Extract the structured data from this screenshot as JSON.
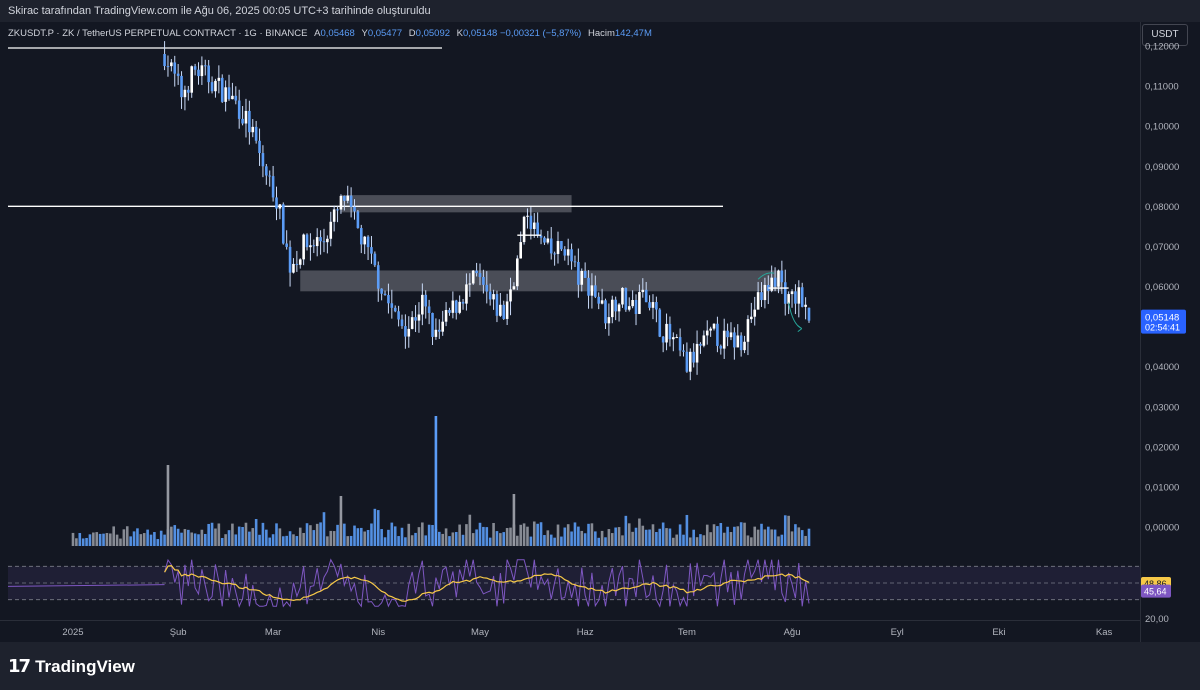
{
  "header": {
    "credit": "Skirac tarafından TradingView.com ile Ağu 06, 2025 00:05 UTC+3 tarihinde oluşturuldu"
  },
  "legend": {
    "symbol": "ZKUSDT.P · ZK / TetherUS PERPETUAL CONTRACT · 1G · BINANCE",
    "open_label": "A",
    "open": "0,05468",
    "high_label": "Y",
    "high": "0,05477",
    "low_label": "D",
    "low": "0,05092",
    "close_label": "K",
    "close": "0,05148",
    "change": "−0,00321 (−5,87%)",
    "volume_label": "Hacim",
    "volume": "142,47M"
  },
  "currency_button": "USDT",
  "price_tag": {
    "value": "0,05148",
    "countdown": "02:54:41",
    "color": "#2962ff"
  },
  "rsi_tags": {
    "ma": "48,86",
    "rsi": "45,64",
    "partial_label": "40,00"
  },
  "brand": {
    "name": "TradingView"
  },
  "colors": {
    "background": "#131722",
    "candle": "#5b9cf6",
    "candle_wick": "#c9daf8",
    "volume_up": "#5b9cf6",
    "volume_down": "#9598a1",
    "rsi_line": "#7e57c2",
    "rsi_ma": "#f7c948",
    "zone": "#9598a1",
    "hline": "#ffffff",
    "arrow": "#26a69a"
  },
  "chart_data": {
    "type": "candlestick",
    "y_axis_labels": [
      "0,12000",
      "0,11000",
      "0,10000",
      "0,09000",
      "0,08000",
      "0,07000",
      "0,06000",
      "0,05000",
      "0,04000",
      "0,03000",
      "0,02000",
      "0,01000",
      "0,00000"
    ],
    "ylim": [
      0,
      0.12
    ],
    "x_axis_labels": [
      "2025",
      "Şub",
      "Mar",
      "Nis",
      "May",
      "Haz",
      "Tem",
      "Ağu",
      "Eyl",
      "Eki",
      "Kas"
    ],
    "rsi_axis_labels": [
      "20,00"
    ],
    "horizontal_lines": [
      0.1195,
      0.08
    ],
    "zones": [
      {
        "from_date": "2025-03-21",
        "to_date": "2025-05-28",
        "low": 0.0785,
        "high": 0.0828
      },
      {
        "from_date": "2025-03-09",
        "to_date": "2025-07-29",
        "low": 0.0588,
        "high": 0.064
      }
    ],
    "price_path": [
      {
        "date": "2025-01-01",
        "close": 0.0
      },
      {
        "date": "2025-01-28",
        "close": 0.118
      },
      {
        "date": "2025-02-02",
        "close": 0.108
      },
      {
        "date": "2025-02-06",
        "close": 0.114
      },
      {
        "date": "2025-02-10",
        "close": 0.112
      },
      {
        "date": "2025-02-14",
        "close": 0.109
      },
      {
        "date": "2025-02-18",
        "close": 0.106
      },
      {
        "date": "2025-02-22",
        "close": 0.1
      },
      {
        "date": "2025-02-26",
        "close": 0.09
      },
      {
        "date": "2025-03-02",
        "close": 0.082
      },
      {
        "date": "2025-03-06",
        "close": 0.065
      },
      {
        "date": "2025-03-10",
        "close": 0.07
      },
      {
        "date": "2025-03-16",
        "close": 0.072
      },
      {
        "date": "2025-03-22",
        "close": 0.082
      },
      {
        "date": "2025-03-28",
        "close": 0.07
      },
      {
        "date": "2025-04-02",
        "close": 0.06
      },
      {
        "date": "2025-04-06",
        "close": 0.052
      },
      {
        "date": "2025-04-10",
        "close": 0.05
      },
      {
        "date": "2025-04-14",
        "close": 0.056
      },
      {
        "date": "2025-04-18",
        "close": 0.047
      },
      {
        "date": "2025-04-22",
        "close": 0.053
      },
      {
        "date": "2025-04-26",
        "close": 0.058
      },
      {
        "date": "2025-04-30",
        "close": 0.062
      },
      {
        "date": "2025-05-04",
        "close": 0.056
      },
      {
        "date": "2025-05-08",
        "close": 0.053
      },
      {
        "date": "2025-05-12",
        "close": 0.066
      },
      {
        "date": "2025-05-15",
        "close": 0.079
      },
      {
        "date": "2025-05-18",
        "close": 0.072
      },
      {
        "date": "2025-05-22",
        "close": 0.068
      },
      {
        "date": "2025-05-26",
        "close": 0.07
      },
      {
        "date": "2025-05-30",
        "close": 0.062
      },
      {
        "date": "2025-06-03",
        "close": 0.06
      },
      {
        "date": "2025-06-07",
        "close": 0.053
      },
      {
        "date": "2025-06-11",
        "close": 0.058
      },
      {
        "date": "2025-06-15",
        "close": 0.054
      },
      {
        "date": "2025-06-19",
        "close": 0.059
      },
      {
        "date": "2025-06-23",
        "close": 0.05
      },
      {
        "date": "2025-06-27",
        "close": 0.046
      },
      {
        "date": "2025-07-01",
        "close": 0.04
      },
      {
        "date": "2025-07-05",
        "close": 0.045
      },
      {
        "date": "2025-07-09",
        "close": 0.048
      },
      {
        "date": "2025-07-13",
        "close": 0.046
      },
      {
        "date": "2025-07-17",
        "close": 0.047
      },
      {
        "date": "2025-07-21",
        "close": 0.055
      },
      {
        "date": "2025-07-25",
        "close": 0.06
      },
      {
        "date": "2025-07-28",
        "close": 0.063
      },
      {
        "date": "2025-07-31",
        "close": 0.056
      },
      {
        "date": "2025-08-03",
        "close": 0.058
      },
      {
        "date": "2025-08-06",
        "close": 0.05148
      }
    ]
  }
}
